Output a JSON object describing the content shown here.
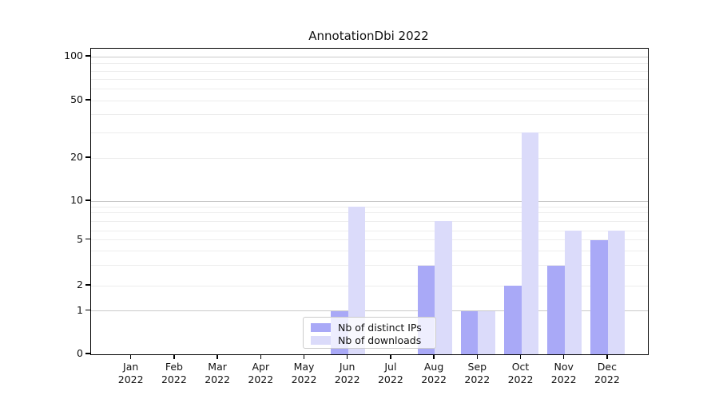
{
  "title": "AnnotationDbi 2022",
  "chart_data": {
    "type": "bar",
    "title": "AnnotationDbi 2022",
    "categories": [
      "Jan",
      "Feb",
      "Mar",
      "Apr",
      "May",
      "Jun",
      "Jul",
      "Aug",
      "Sep",
      "Oct",
      "Nov",
      "Dec"
    ],
    "year_label": "2022",
    "series": [
      {
        "name": "Nb of distinct IPs",
        "color": "#a9a9f7",
        "values": [
          0,
          0,
          0,
          0,
          0,
          1,
          0,
          3,
          1,
          2,
          3,
          5
        ]
      },
      {
        "name": "Nb of downloads",
        "color": "#dbdbfa",
        "values": [
          0,
          0,
          0,
          0,
          0,
          9,
          0,
          7,
          1,
          30,
          6,
          6
        ]
      }
    ],
    "y_axis": {
      "scale": "log-like (0 baseline, log above 1)",
      "labeled_ticks": [
        0,
        1,
        2,
        5,
        10,
        20,
        50,
        100
      ],
      "minor_ticks": [
        3,
        4,
        6,
        7,
        8,
        9,
        30,
        40,
        60,
        70,
        80,
        90
      ],
      "ylim": [
        0,
        110
      ]
    },
    "x_axis": {
      "label_line2": "2022"
    },
    "grid": "horizontal",
    "legend_position": "inside bottom-center",
    "colors": {
      "major_grid": "#c9c9c9",
      "minor_grid": "#ededed",
      "spine": "#000000"
    }
  },
  "legend": {
    "items": [
      {
        "label": "Nb of distinct IPs",
        "color": "#a9a9f7"
      },
      {
        "label": "Nb of downloads",
        "color": "#dbdbfa"
      }
    ]
  }
}
